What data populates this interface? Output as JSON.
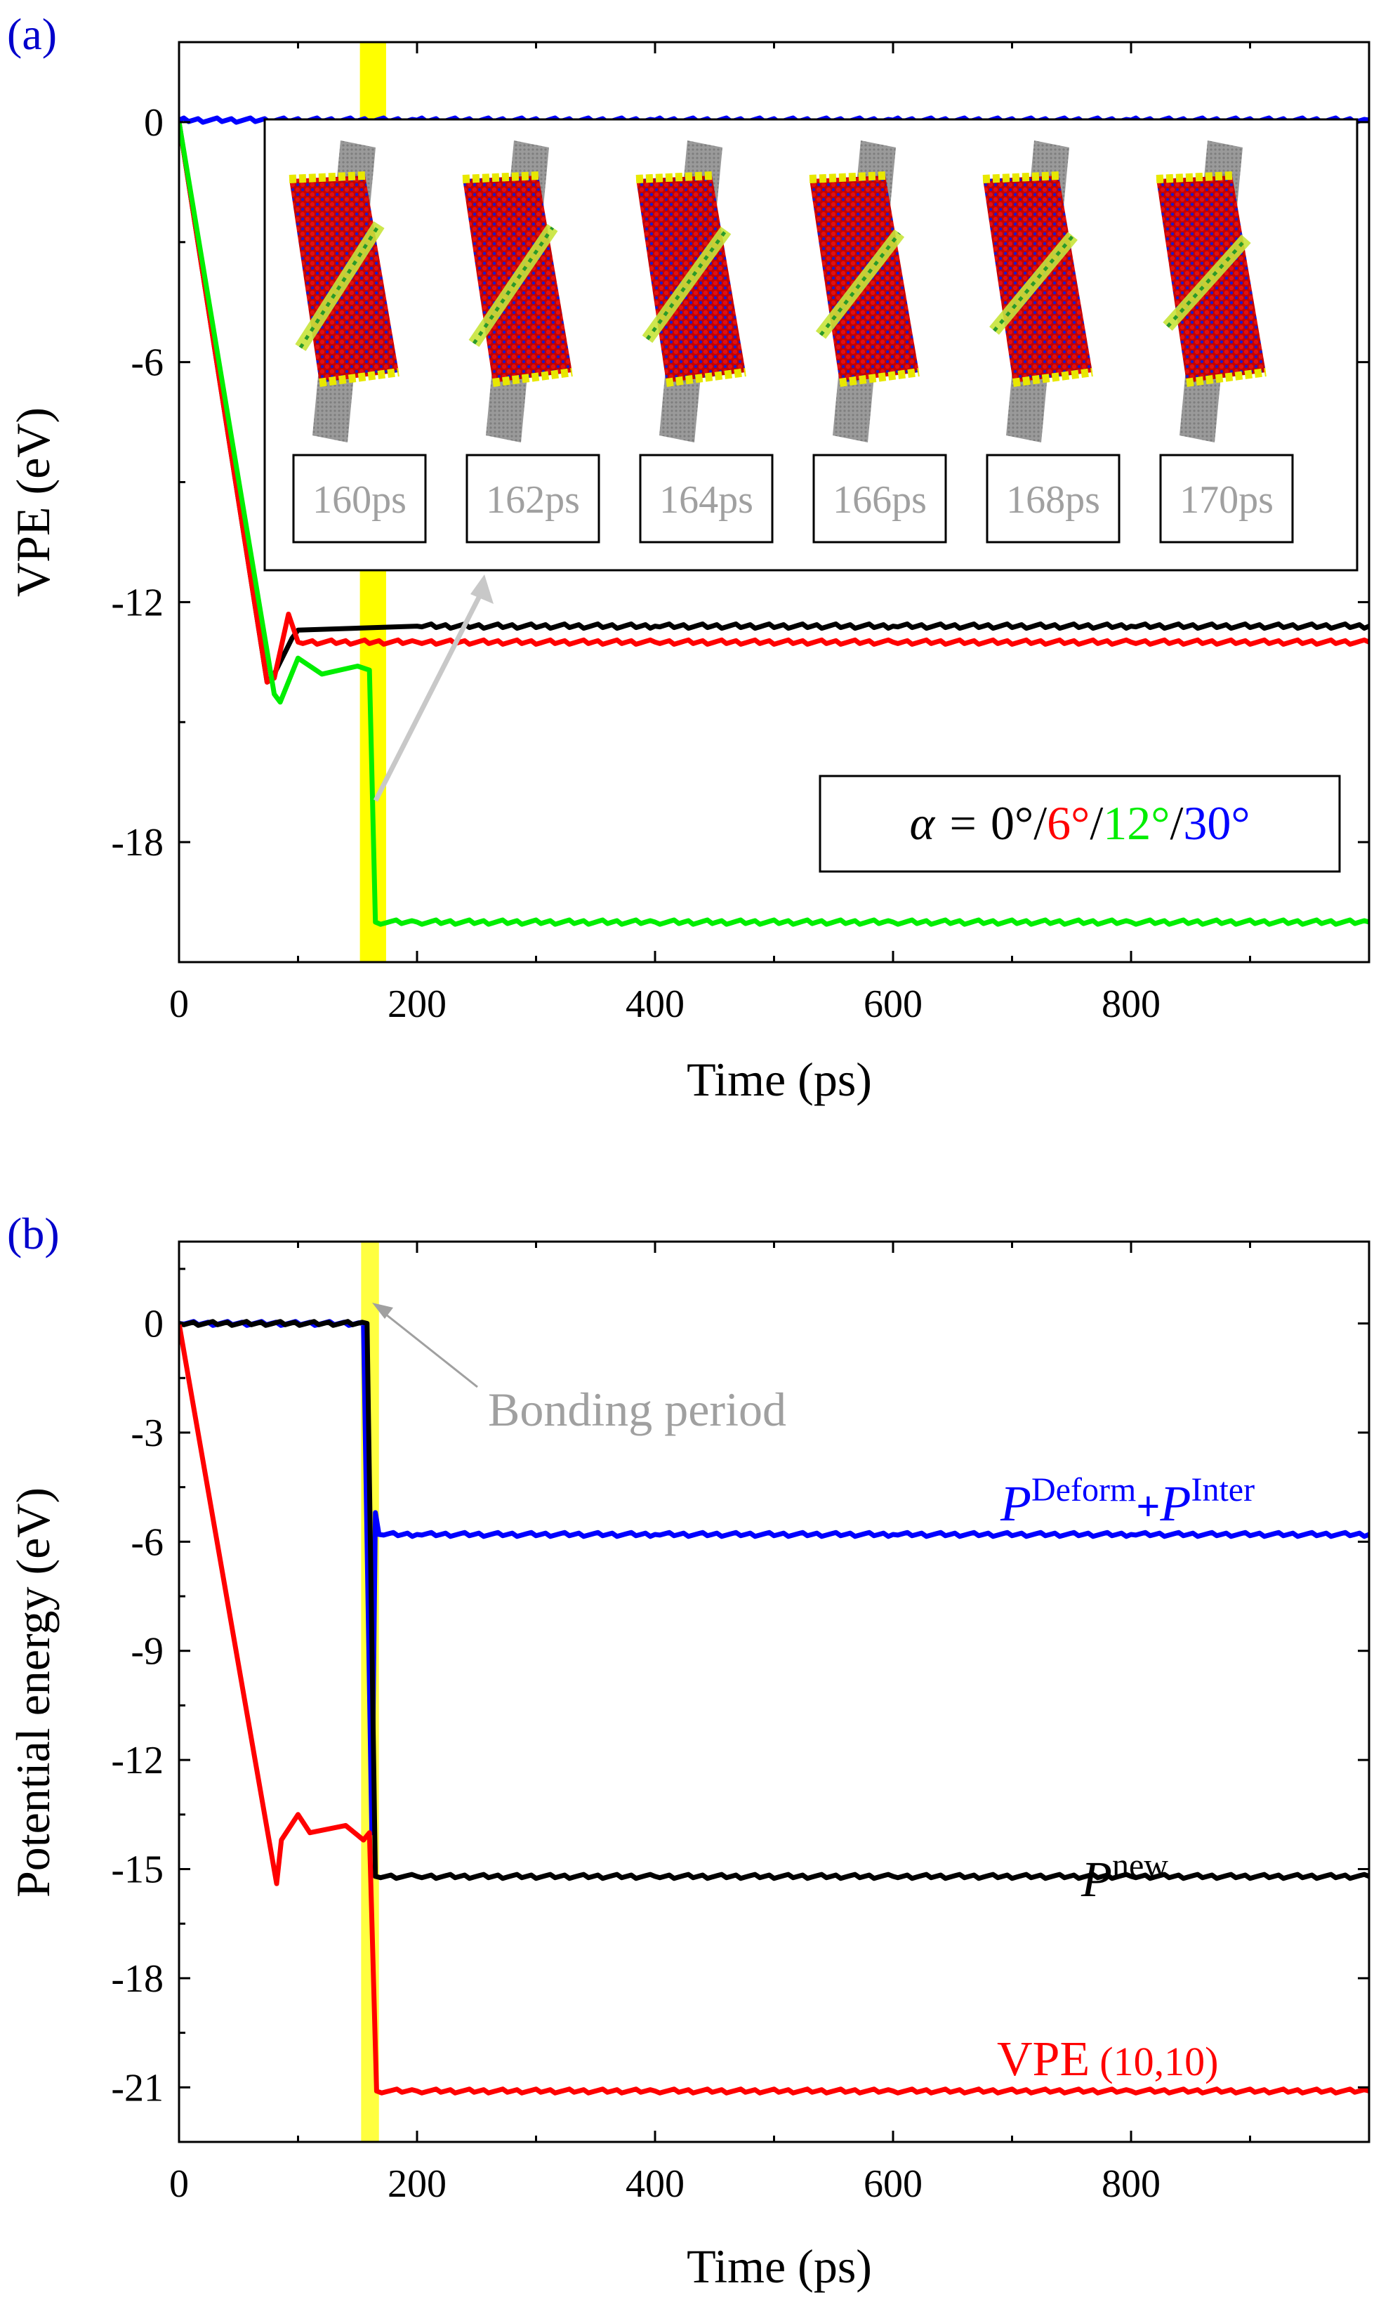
{
  "chart_data": [
    {
      "panel": "(a)",
      "type": "line",
      "xlabel": "Time (ps)",
      "ylabel": "VPE (eV)",
      "xlim": [
        0,
        1000
      ],
      "ylim": [
        -21,
        2
      ],
      "xticks": [
        0,
        200,
        400,
        600,
        800
      ],
      "yticks": [
        0,
        -6,
        -12,
        -18
      ],
      "xtick_labels": [
        "0",
        "200",
        "400",
        "600",
        "800"
      ],
      "ytick_labels": [
        "0",
        "-6",
        "-12",
        "-18"
      ],
      "highlight": {
        "x_range": [
          152,
          174
        ],
        "color": "#ffff00"
      },
      "legend": {
        "prefix": "α = ",
        "entries": [
          {
            "text": "0°",
            "color": "#000000"
          },
          {
            "text": "6°",
            "color": "#ff0000"
          },
          {
            "text": "12°",
            "color": "#00ee00"
          },
          {
            "text": "30°",
            "color": "#0000ff"
          }
        ],
        "separator": "/"
      },
      "inset": {
        "description": "snapshots of nanotube bonding",
        "labels": [
          "160ps",
          "162ps",
          "164ps",
          "166ps",
          "168ps",
          "170ps"
        ]
      },
      "series": [
        {
          "name": "0°",
          "color": "#000000",
          "points": [
            [
              0,
              0
            ],
            [
              74,
              -14.0
            ],
            [
              80,
              -13.8
            ],
            [
              95,
              -12.9
            ],
            [
              100,
              -12.7
            ],
            [
              200,
              -12.6
            ],
            [
              400,
              -12.6
            ],
            [
              600,
              -12.6
            ],
            [
              800,
              -12.6
            ],
            [
              1000,
              -12.6
            ]
          ]
        },
        {
          "name": "6°",
          "color": "#ff0000",
          "points": [
            [
              0,
              0
            ],
            [
              74,
              -14.0
            ],
            [
              80,
              -13.9
            ],
            [
              92,
              -12.3
            ],
            [
              100,
              -13.0
            ],
            [
              200,
              -13.0
            ],
            [
              400,
              -13.0
            ],
            [
              600,
              -13.0
            ],
            [
              800,
              -13.0
            ],
            [
              1000,
              -13.0
            ]
          ]
        },
        {
          "name": "12°",
          "color": "#00ee00",
          "points": [
            [
              0,
              0
            ],
            [
              80,
              -14.3
            ],
            [
              85,
              -14.5
            ],
            [
              100,
              -13.4
            ],
            [
              120,
              -13.8
            ],
            [
              150,
              -13.6
            ],
            [
              160,
              -13.7
            ],
            [
              165,
              -20.0
            ],
            [
              200,
              -20.0
            ],
            [
              400,
              -20.0
            ],
            [
              600,
              -20.0
            ],
            [
              800,
              -20.0
            ],
            [
              1000,
              -20.0
            ]
          ]
        },
        {
          "name": "30°",
          "color": "#0000ff",
          "points": [
            [
              0,
              0.05
            ],
            [
              200,
              0.05
            ],
            [
              400,
              0.05
            ],
            [
              600,
              0.05
            ],
            [
              800,
              0.05
            ],
            [
              1000,
              0.05
            ]
          ]
        }
      ]
    },
    {
      "panel": "(b)",
      "type": "line",
      "xlabel": "Time (ps)",
      "ylabel": "Potential energy (eV)",
      "xlim": [
        0,
        1000
      ],
      "ylim": [
        -22.5,
        2.25
      ],
      "xticks": [
        0,
        200,
        400,
        600,
        800
      ],
      "yticks": [
        0,
        -3,
        -6,
        -9,
        -12,
        -15,
        -18,
        -21
      ],
      "xtick_labels": [
        "0",
        "200",
        "400",
        "600",
        "800"
      ],
      "ytick_labels": [
        "0",
        "-3",
        "-6",
        "-9",
        "-12",
        "-15",
        "-18",
        "-21"
      ],
      "highlight": {
        "x_range": [
          153,
          168
        ],
        "color": "#ffff00"
      },
      "annotation": {
        "text": "Bonding period",
        "color": "#a0a0a0"
      },
      "series": [
        {
          "name": "P^Deform + P^Inter",
          "label_main": "P",
          "label_sup": "Deform",
          "label_plus": "+",
          "label_main2": "P",
          "label_sup2": "Inter",
          "color": "#0000ff",
          "points": [
            [
              0,
              0
            ],
            [
              155,
              0
            ],
            [
              162,
              -14.0
            ],
            [
              165,
              -5.2
            ],
            [
              168,
              -5.8
            ],
            [
              200,
              -5.8
            ],
            [
              400,
              -5.8
            ],
            [
              600,
              -5.8
            ],
            [
              800,
              -5.8
            ],
            [
              1000,
              -5.8
            ]
          ]
        },
        {
          "name": "P^new",
          "label_main": "P",
          "label_sup": "new",
          "color": "#000000",
          "points": [
            [
              0,
              0
            ],
            [
              158,
              0
            ],
            [
              165,
              -15.2
            ],
            [
              200,
              -15.2
            ],
            [
              400,
              -15.2
            ],
            [
              600,
              -15.2
            ],
            [
              800,
              -15.2
            ],
            [
              1000,
              -15.2
            ]
          ]
        },
        {
          "name": "VPE (10,10)",
          "label_main": "VPE",
          "label_paren": "(10,10)",
          "color": "#ff0000",
          "points": [
            [
              0,
              0
            ],
            [
              82,
              -15.4
            ],
            [
              86,
              -14.2
            ],
            [
              100,
              -13.5
            ],
            [
              110,
              -14.0
            ],
            [
              140,
              -13.8
            ],
            [
              155,
              -14.2
            ],
            [
              160,
              -14.0
            ],
            [
              166,
              -21.1
            ],
            [
              200,
              -21.1
            ],
            [
              400,
              -21.1
            ],
            [
              600,
              -21.1
            ],
            [
              800,
              -21.1
            ],
            [
              1000,
              -21.1
            ]
          ]
        }
      ]
    }
  ]
}
